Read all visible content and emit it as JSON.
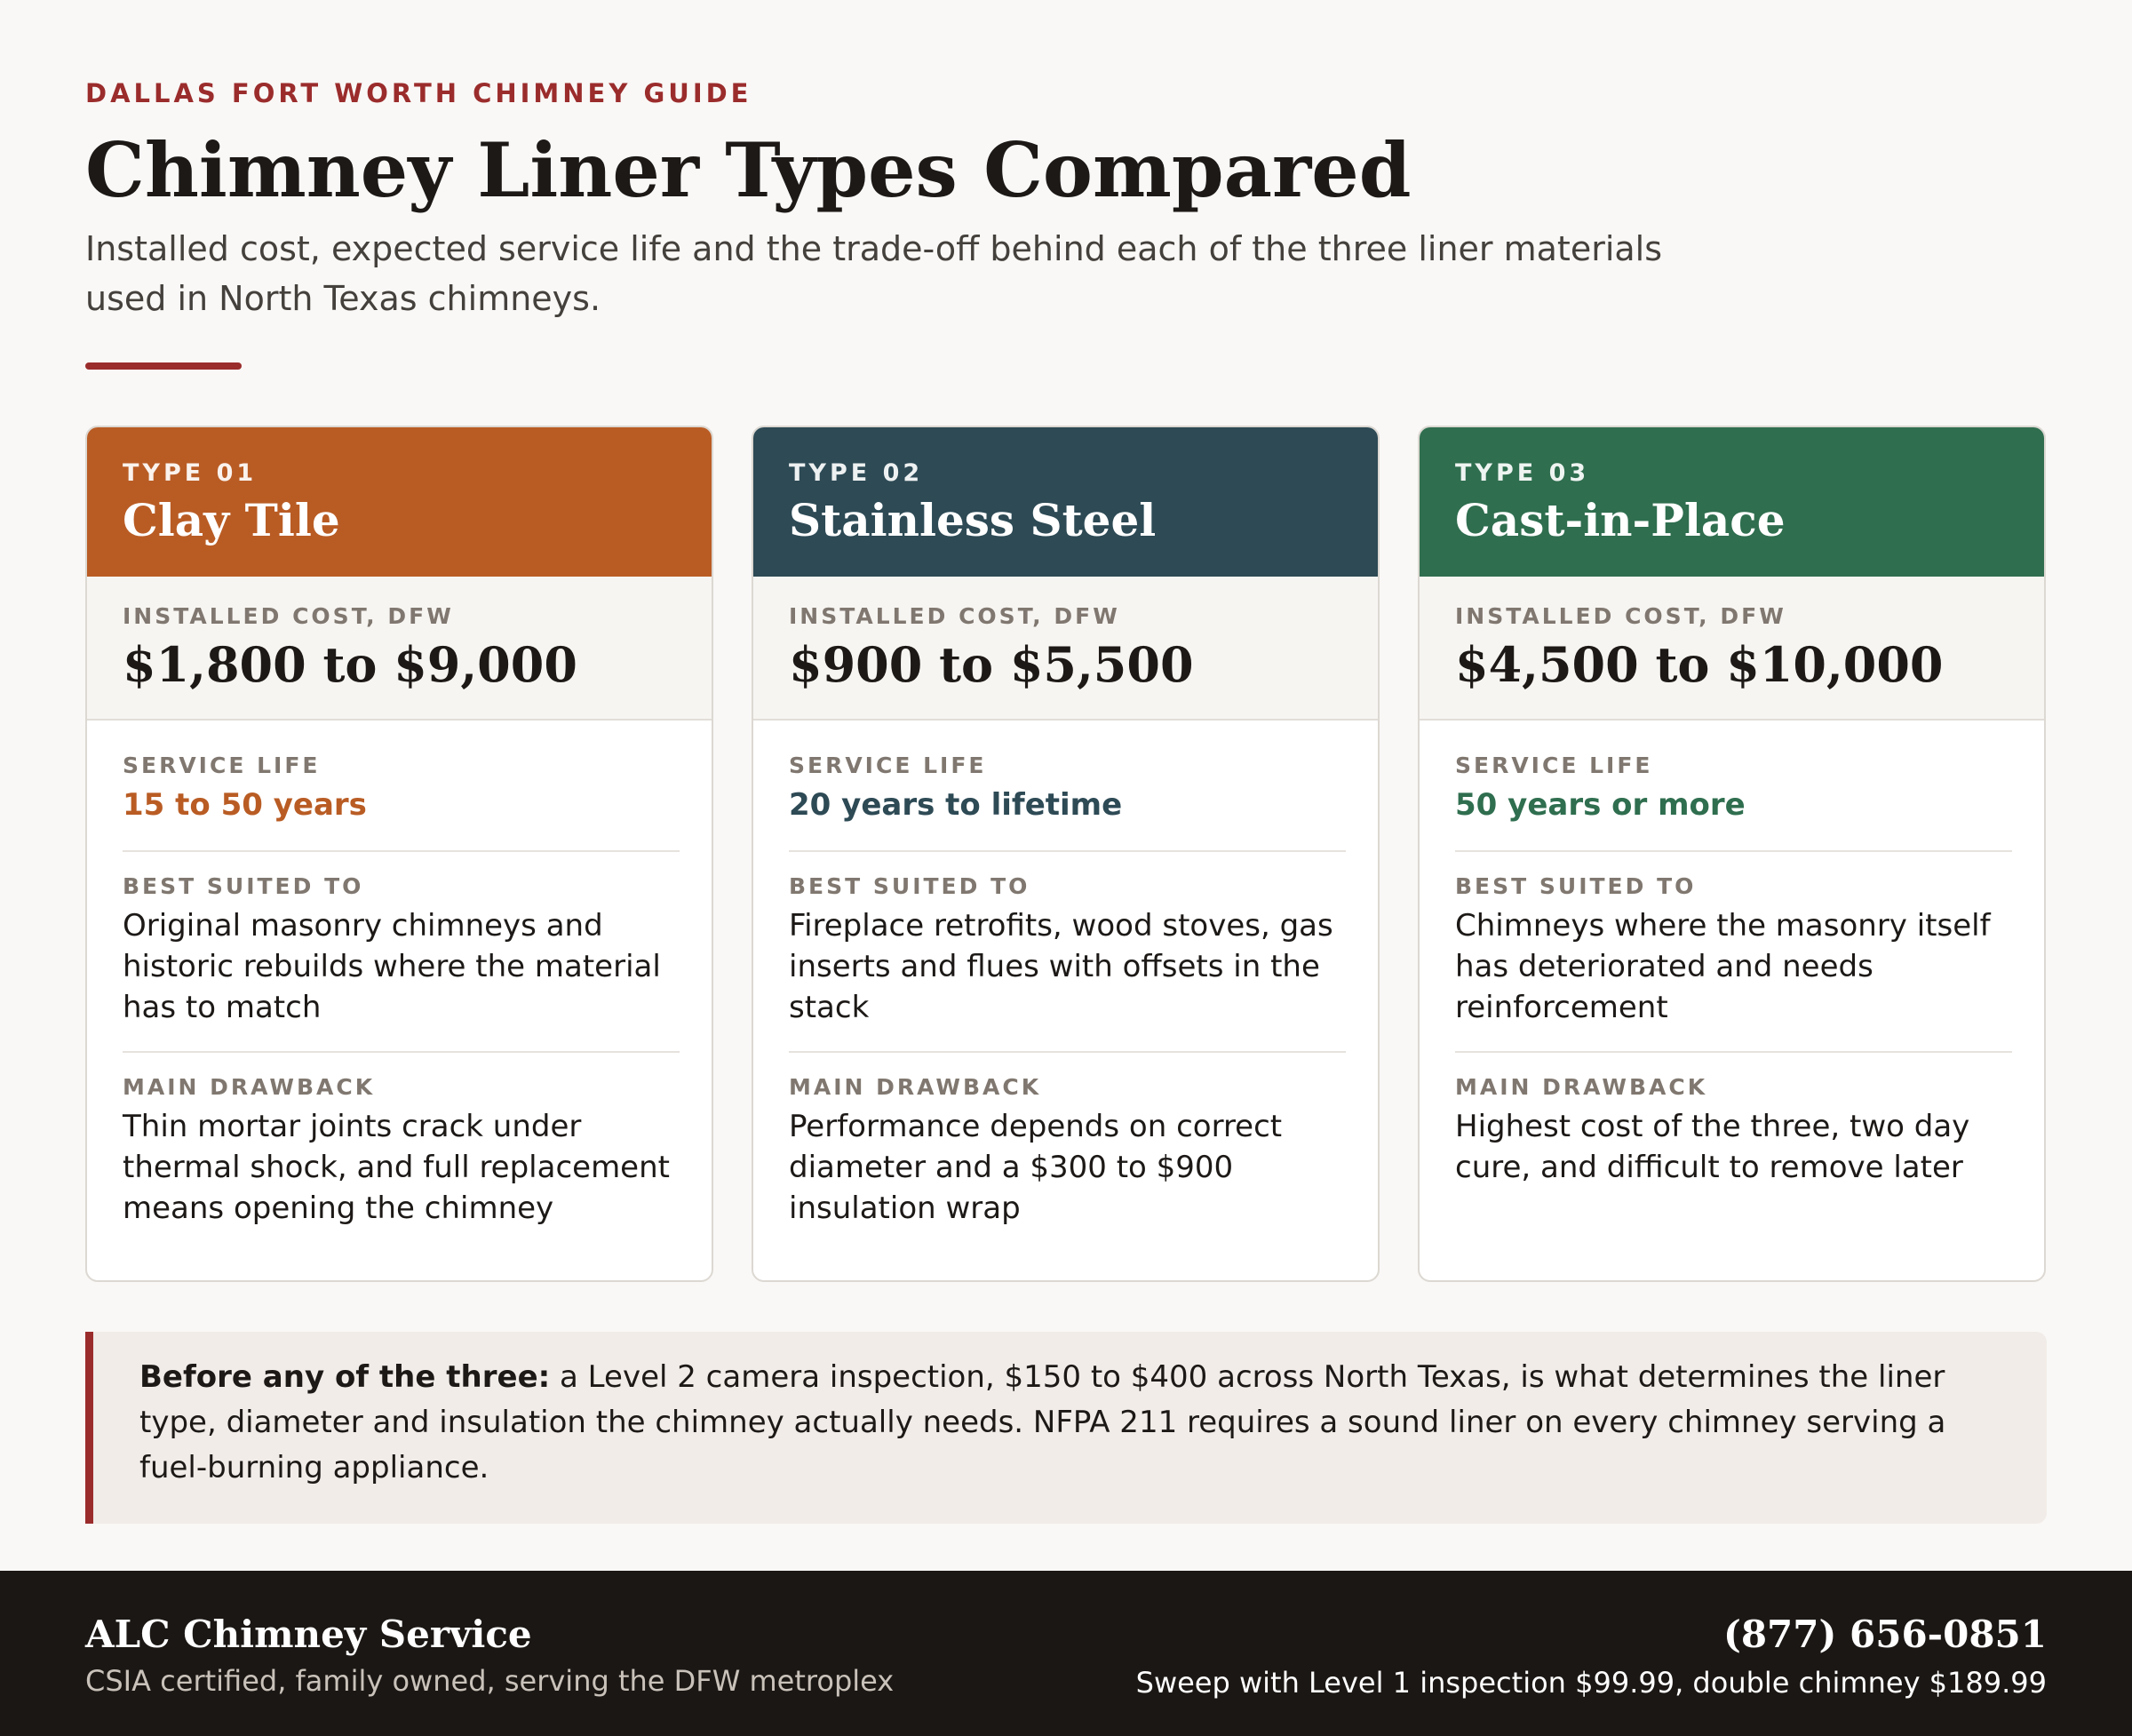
{
  "header": {
    "eyebrow": "DALLAS FORT WORTH CHIMNEY GUIDE",
    "title": "Chimney Liner Types Compared",
    "subtitle": "Installed cost, expected service life and the trade-off behind each of the three liner materials used in North Texas chimneys."
  },
  "labels": {
    "installed_cost": "INSTALLED COST, DFW",
    "service_life": "SERVICE LIFE",
    "best_suited": "BEST SUITED TO",
    "main_drawback": "MAIN DRAWBACK"
  },
  "cards": [
    {
      "type": "TYPE 01",
      "name": "Clay Tile",
      "cost": "$1,800 to $9,000",
      "life": "15 to 50 years",
      "suited": "Original masonry chimneys and historic rebuilds where the material has to match",
      "drawback": "Thin mortar joints crack under thermal shock, and full replacement means opening the chimney",
      "color": "#b95c24"
    },
    {
      "type": "TYPE 02",
      "name": "Stainless Steel",
      "cost": "$900 to $5,500",
      "life": "20 years to lifetime",
      "suited": "Fireplace retrofits, wood stoves, gas inserts and flues with offsets in the stack",
      "drawback": "Performance depends on correct diameter and a $300 to $900 insulation wrap",
      "color": "#2d4a55"
    },
    {
      "type": "TYPE 03",
      "name": "Cast-in-Place",
      "cost": "$4,500 to $10,000",
      "life": "50 years or more",
      "suited": "Chimneys where the masonry itself has deteriorated and needs reinforcement",
      "drawback": "Highest cost of the three, two day cure, and difficult to remove later",
      "color": "#2f6e4f"
    }
  ],
  "note": {
    "lead": "Before any of the three:",
    "text": " a Level 2 camera inspection, $150 to $400 across North Texas, is what determines the liner type, diameter and insulation the chimney actually needs. NFPA 211 requires a sound liner on every chimney serving a fuel-burning appliance."
  },
  "footer": {
    "brand": "ALC Chimney Service",
    "tagline": "CSIA certified, family owned, serving the DFW metroplex",
    "phone": "(877) 656-0851",
    "offer": "Sweep with Level 1 inspection $99.99, double chimney $189.99"
  },
  "colors": {
    "accent": "#9b2c2c",
    "footer_bg": "#1b1714"
  }
}
